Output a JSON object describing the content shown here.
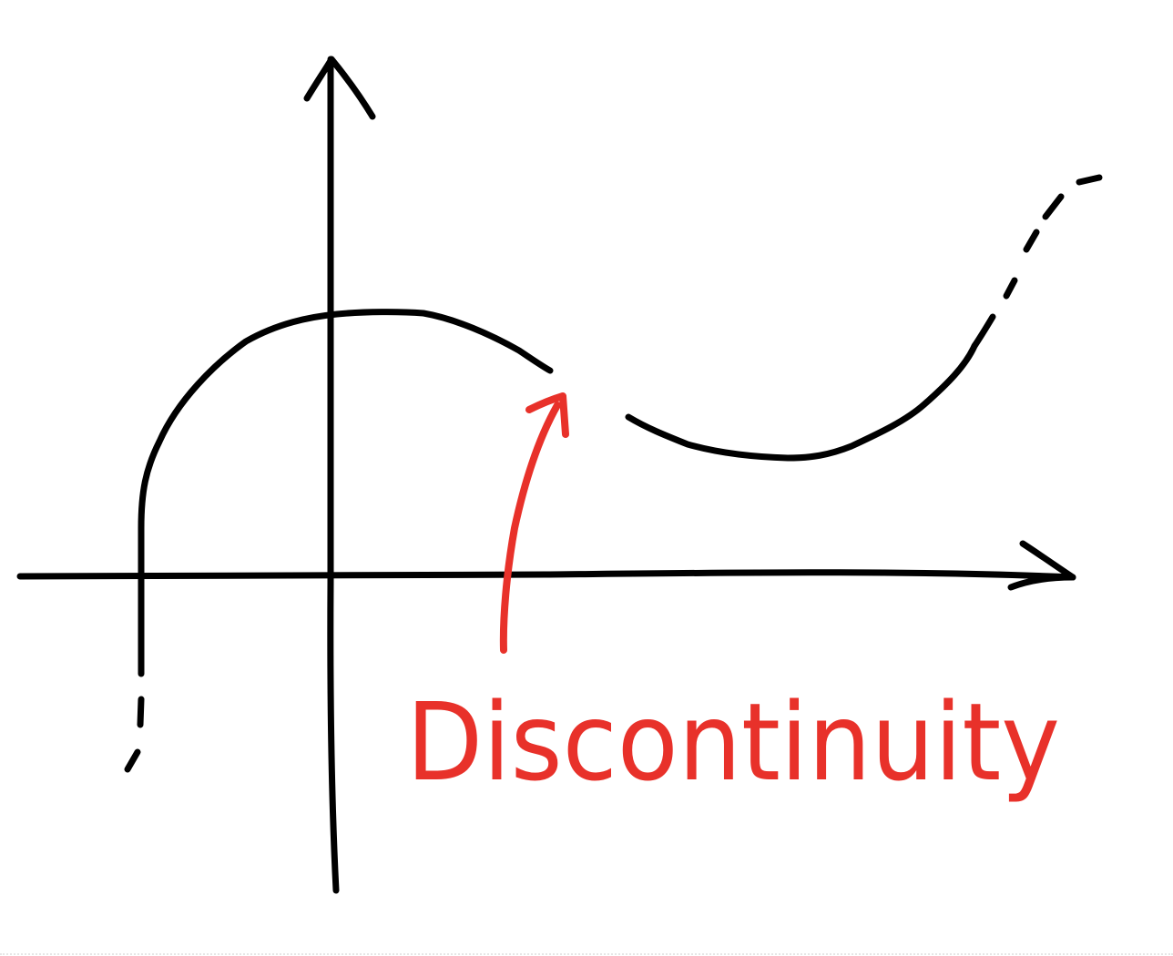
{
  "diagram": {
    "annotation_label": "Discontinuity",
    "colors": {
      "ink": "#000000",
      "annotation": "#e8312a",
      "background": "#ffffff"
    },
    "elements": {
      "x_axis": "x-axis-arrow",
      "y_axis": "y-axis-arrow",
      "left_curve": "left-curve-segment",
      "right_curve": "right-curve-segment",
      "pointer": "red-arrow-pointer"
    }
  }
}
